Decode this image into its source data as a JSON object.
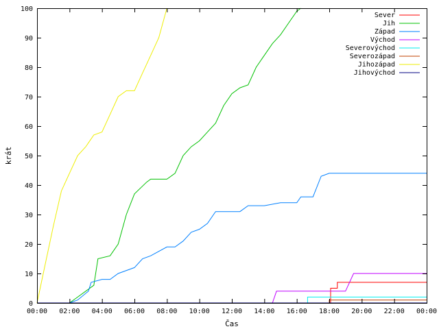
{
  "chart_data": {
    "type": "line",
    "title": "",
    "xlabel": "Čas",
    "ylabel": "krát",
    "xlim": [
      "00:00",
      "24:00"
    ],
    "ylim": [
      0,
      100
    ],
    "x_ticks": [
      "00:00",
      "02:00",
      "04:00",
      "06:00",
      "08:00",
      "10:00",
      "12:00",
      "14:00",
      "16:00",
      "18:00",
      "20:00",
      "22:00",
      "00:00"
    ],
    "y_ticks": [
      0,
      10,
      20,
      30,
      40,
      50,
      60,
      70,
      80,
      90,
      100
    ],
    "grid": false,
    "legend_position": "top-right",
    "series": [
      {
        "name": "Sever",
        "color": "#ff0000",
        "x": [
          "00:00",
          "18:05",
          "18:05",
          "18:30",
          "18:30",
          "24:00"
        ],
        "y": [
          0,
          0,
          5,
          5,
          7,
          7
        ]
      },
      {
        "name": "Jih",
        "color": "#00c000",
        "x": [
          "02:00",
          "02:30",
          "03:00",
          "03:30",
          "03:45",
          "04:30",
          "05:00",
          "05:30",
          "06:00",
          "06:45",
          "07:00",
          "08:00",
          "08:30",
          "09:00",
          "09:30",
          "10:00",
          "10:30",
          "11:00",
          "11:30",
          "12:00",
          "12:30",
          "13:00",
          "13:30",
          "14:00",
          "14:30",
          "15:00",
          "15:30",
          "16:00",
          "16:15"
        ],
        "y": [
          0,
          2,
          4,
          6,
          15,
          16,
          20,
          30,
          37,
          41,
          42,
          42,
          44,
          50,
          53,
          55,
          58,
          61,
          67,
          71,
          73,
          74,
          80,
          84,
          88,
          91,
          95,
          99,
          100
        ]
      },
      {
        "name": "Západ",
        "color": "#0080ff",
        "x": [
          "02:00",
          "02:30",
          "03:10",
          "03:20",
          "04:00",
          "04:30",
          "05:00",
          "06:00",
          "06:30",
          "07:00",
          "08:00",
          "08:30",
          "09:00",
          "09:30",
          "10:00",
          "10:30",
          "11:00",
          "11:30",
          "12:00",
          "12:30",
          "13:00",
          "14:00",
          "15:00",
          "16:00",
          "16:15",
          "16:45",
          "17:00",
          "17:30",
          "18:00",
          "24:00"
        ],
        "y": [
          0,
          1,
          4,
          7,
          8,
          8,
          10,
          12,
          15,
          16,
          19,
          19,
          21,
          24,
          25,
          27,
          31,
          31,
          31,
          31,
          33,
          33,
          34,
          34,
          36,
          36,
          36,
          43,
          44,
          44
        ]
      },
      {
        "name": "Východ",
        "color": "#c000ff",
        "x": [
          "00:00",
          "14:30",
          "14:45",
          "19:00",
          "19:30",
          "24:00"
        ],
        "y": [
          0,
          0,
          4,
          4,
          10,
          10
        ]
      },
      {
        "name": "Severovýchod",
        "color": "#00eeee",
        "x": [
          "00:00",
          "16:40",
          "16:40",
          "24:00"
        ],
        "y": [
          0,
          0,
          2,
          2
        ]
      },
      {
        "name": "Severozápad",
        "color": "#c04000",
        "x": [
          "00:00",
          "18:00",
          "18:00",
          "24:00"
        ],
        "y": [
          0,
          0,
          1,
          1
        ]
      },
      {
        "name": "Jihozápad",
        "color": "#eeee00",
        "x": [
          "00:00",
          "00:30",
          "01:00",
          "01:30",
          "02:00",
          "02:30",
          "03:00",
          "03:30",
          "04:00",
          "04:30",
          "05:00",
          "05:30",
          "06:00",
          "06:30",
          "07:00",
          "07:30",
          "08:00"
        ],
        "y": [
          0,
          13,
          26,
          38,
          44,
          50,
          53,
          57,
          58,
          64,
          70,
          72,
          72,
          78,
          84,
          90,
          100
        ]
      },
      {
        "name": "Jihovýchod",
        "color": "#000080",
        "x": [
          "00:00",
          "24:00"
        ],
        "y": [
          0,
          0
        ]
      }
    ]
  }
}
